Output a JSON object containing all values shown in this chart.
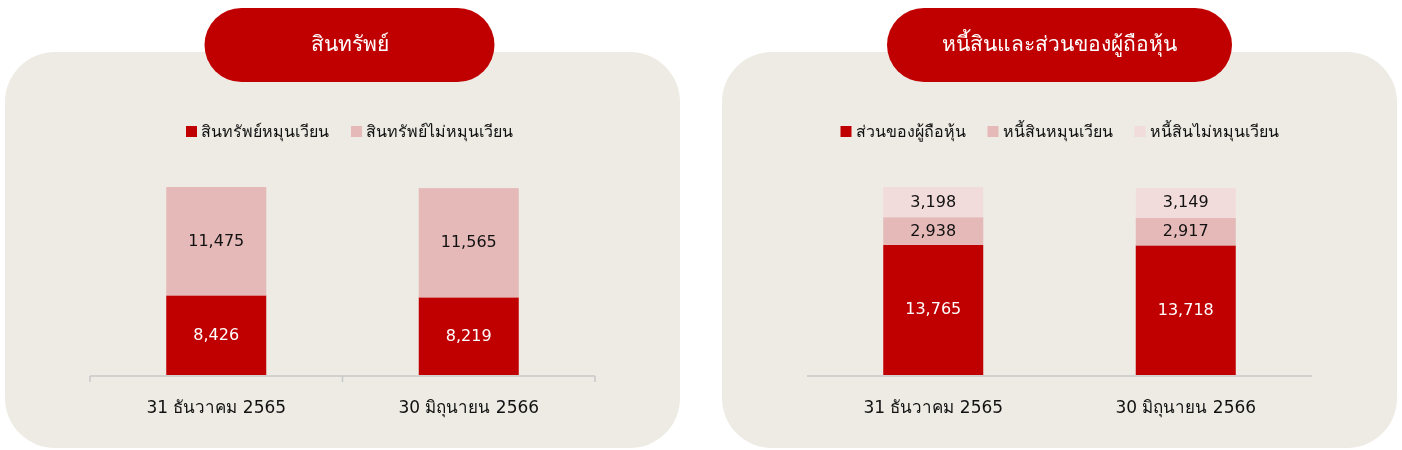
{
  "chart_data": [
    {
      "type": "bar",
      "stacked": true,
      "title": "สินทรัพย์",
      "legend": "top",
      "categories": [
        "31 ธันวาคม 2565",
        "30 มิถุนายน 2566"
      ],
      "series": [
        {
          "name": "สินทรัพย์หมุนเวียน",
          "color": "#c00000",
          "values": [
            8426,
            8219
          ],
          "value_labels": [
            "8,426",
            "8,219"
          ]
        },
        {
          "name": "สินทรัพย์ไม่หมุนเวียน",
          "color": "#e5b9b8",
          "values": [
            11475,
            11565
          ],
          "value_labels": [
            "11,475",
            "11,565"
          ]
        }
      ]
    },
    {
      "type": "bar",
      "stacked": true,
      "title": "หนี้สินและส่วนของผู้ถือหุ้น",
      "legend": "top",
      "categories": [
        "31 ธันวาคม 2565",
        "30 มิถุนายน 2566"
      ],
      "series": [
        {
          "name": "ส่วนของผู้ถือหุ้น",
          "color": "#c00000",
          "values": [
            13765,
            13718
          ],
          "value_labels": [
            "13,765",
            "13,718"
          ]
        },
        {
          "name": "หนี้สินหมุนเวียน",
          "color": "#e5b9b8",
          "values": [
            2938,
            2917
          ],
          "value_labels": [
            "2,938",
            "2,917"
          ]
        },
        {
          "name": "หนี้สินไม่หมุนเวียน",
          "color": "#f2dcdb",
          "values": [
            3198,
            3149
          ],
          "value_labels": [
            "3,198",
            "3,149"
          ]
        }
      ]
    }
  ]
}
